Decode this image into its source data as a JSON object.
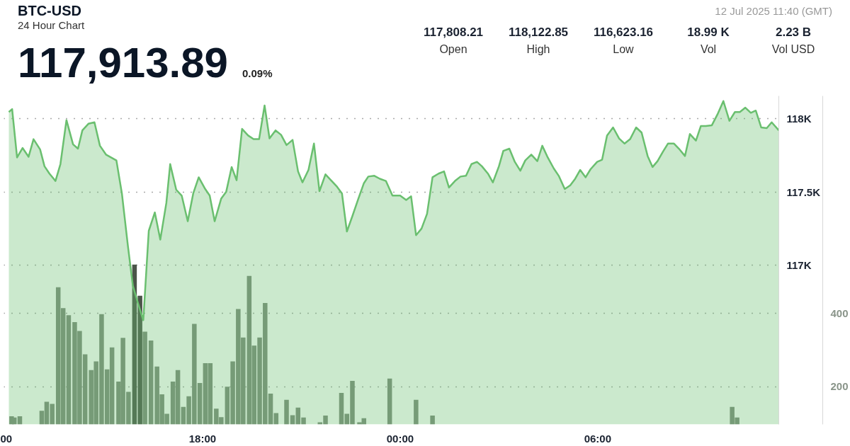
{
  "chart_data": {
    "type": "area",
    "title": "BTC-USD",
    "subtitle": "24 Hour Chart",
    "annotations": [
      "117,913.89",
      "0.09%",
      "117,808.21",
      "Open",
      "118,122.85",
      "High",
      "116,623.16",
      "Low",
      "18.99 K",
      "Vol",
      "2.23 B",
      "Vol USD",
      "12 Jul 2025 11:40 (GMT)"
    ],
    "xlim": [
      "2025-07-11T11:58",
      "2025-07-12T11:30"
    ],
    "xticks": [
      {
        "value": "2025-07-11T12:00",
        "label": "00"
      },
      {
        "value": "2025-07-11T18:00",
        "label": "18:00"
      },
      {
        "value": "2025-07-12T00:00",
        "label": "00:00"
      },
      {
        "value": "2025-07-12T06:00",
        "label": "06:00"
      }
    ],
    "ylim": [
      115914,
      118155
    ],
    "yticks": [
      {
        "value": 117000,
        "label": "117K"
      },
      {
        "value": 117500,
        "label": "117.5K"
      },
      {
        "value": 118000,
        "label": "118K"
      }
    ],
    "y2lim": [
      97,
      993
    ],
    "y2ticks": [
      200,
      400
    ],
    "grid": true,
    "series": [
      {
        "color": "#6abf6f",
        "x": [
          "2025-07-11T12:07",
          "2025-07-11T12:13",
          "2025-07-11T12:22",
          "2025-07-11T12:32",
          "2025-07-11T12:43",
          "2025-07-11T12:52",
          "2025-07-11T13:04",
          "2025-07-11T13:12",
          "2025-07-11T13:21",
          "2025-07-11T13:32",
          "2025-07-11T13:41",
          "2025-07-11T13:52",
          "2025-07-11T14:04",
          "2025-07-11T14:13",
          "2025-07-11T14:21",
          "2025-07-11T14:32",
          "2025-07-11T14:43",
          "2025-07-11T14:53",
          "2025-07-11T15:04",
          "2025-07-11T15:23",
          "2025-07-11T15:33",
          "2025-07-11T15:44",
          "2025-07-11T15:53",
          "2025-07-11T16:02",
          "2025-07-11T16:12",
          "2025-07-11T16:22",
          "2025-07-11T16:33",
          "2025-07-11T16:43",
          "2025-07-11T16:54",
          "2025-07-11T17:01",
          "2025-07-11T17:12",
          "2025-07-11T17:22",
          "2025-07-11T17:33",
          "2025-07-11T17:43",
          "2025-07-11T17:53",
          "2025-07-11T18:04",
          "2025-07-11T18:13",
          "2025-07-11T18:22",
          "2025-07-11T18:34",
          "2025-07-11T18:43",
          "2025-07-11T18:53",
          "2025-07-11T19:02",
          "2025-07-11T19:12",
          "2025-07-11T19:23",
          "2025-07-11T19:33",
          "2025-07-11T19:43",
          "2025-07-11T19:53",
          "2025-07-11T20:02",
          "2025-07-11T20:13",
          "2025-07-11T20:23",
          "2025-07-11T20:33",
          "2025-07-11T20:44",
          "2025-07-11T20:54",
          "2025-07-11T21:02",
          "2025-07-11T21:13",
          "2025-07-11T21:23",
          "2025-07-11T21:33",
          "2025-07-11T21:44",
          "2025-07-11T21:54",
          "2025-07-11T22:04",
          "2025-07-11T22:14",
          "2025-07-11T22:23",
          "2025-07-11T22:33",
          "2025-07-11T22:44",
          "2025-07-11T22:54",
          "2025-07-11T23:02",
          "2025-07-11T23:13",
          "2025-07-11T23:23",
          "2025-07-11T23:34",
          "2025-07-11T23:46",
          "2025-07-12T00:00",
          "2025-07-12T00:11",
          "2025-07-12T00:20",
          "2025-07-12T00:29",
          "2025-07-12T00:39",
          "2025-07-12T00:49",
          "2025-07-12T00:59",
          "2025-07-12T01:10",
          "2025-07-12T01:20",
          "2025-07-12T01:29",
          "2025-07-12T01:40",
          "2025-07-12T01:50",
          "2025-07-12T02:00",
          "2025-07-12T02:10",
          "2025-07-12T02:20",
          "2025-07-12T02:29",
          "2025-07-12T02:40",
          "2025-07-12T02:49",
          "2025-07-12T03:00",
          "2025-07-12T03:08",
          "2025-07-12T03:19",
          "2025-07-12T03:29",
          "2025-07-12T03:39",
          "2025-07-12T03:48",
          "2025-07-12T03:59",
          "2025-07-12T04:10",
          "2025-07-12T04:19",
          "2025-07-12T04:29",
          "2025-07-12T04:40",
          "2025-07-12T04:49",
          "2025-07-12T05:00",
          "2025-07-12T05:10",
          "2025-07-12T05:19",
          "2025-07-12T05:28",
          "2025-07-12T05:38",
          "2025-07-12T05:47",
          "2025-07-12T05:59",
          "2025-07-12T06:08",
          "2025-07-12T06:17",
          "2025-07-12T06:28",
          "2025-07-12T06:39",
          "2025-07-12T06:49",
          "2025-07-12T06:59",
          "2025-07-12T07:10",
          "2025-07-12T07:20",
          "2025-07-12T07:31",
          "2025-07-12T07:40",
          "2025-07-12T07:49",
          "2025-07-12T07:59",
          "2025-07-12T08:08",
          "2025-07-12T08:19",
          "2025-07-12T08:28",
          "2025-07-12T08:39",
          "2025-07-12T08:48",
          "2025-07-12T08:59",
          "2025-07-12T09:08",
          "2025-07-12T09:17",
          "2025-07-12T09:28",
          "2025-07-12T09:39",
          "2025-07-12T09:49",
          "2025-07-12T10:00",
          "2025-07-12T10:10",
          "2025-07-12T10:19",
          "2025-07-12T10:29",
          "2025-07-12T10:39",
          "2025-07-12T10:48",
          "2025-07-12T10:58",
          "2025-07-12T11:08",
          "2025-07-12T11:17",
          "2025-07-12T11:30"
        ],
        "values": [
          118045,
          118065,
          117735,
          117800,
          117740,
          117860,
          117790,
          117675,
          117625,
          117575,
          117690,
          117990,
          117825,
          117795,
          117920,
          117965,
          117975,
          117815,
          117755,
          117715,
          117490,
          117130,
          116860,
          116745,
          116625,
          117235,
          117360,
          117175,
          117425,
          117690,
          117515,
          117475,
          117300,
          117490,
          117600,
          117525,
          117475,
          117300,
          117455,
          117500,
          117670,
          117580,
          117930,
          117885,
          117860,
          117860,
          118090,
          117865,
          117920,
          117890,
          117820,
          117855,
          117640,
          117565,
          117650,
          117830,
          117505,
          117620,
          117580,
          117540,
          117490,
          117230,
          117335,
          117455,
          117560,
          117605,
          117610,
          117590,
          117575,
          117475,
          117475,
          117445,
          117470,
          117205,
          117250,
          117350,
          117600,
          117625,
          117640,
          117530,
          117575,
          117605,
          117610,
          117690,
          117705,
          117675,
          117625,
          117565,
          117675,
          117780,
          117795,
          117705,
          117645,
          117715,
          117755,
          117710,
          117815,
          117735,
          117660,
          117610,
          117520,
          117545,
          117590,
          117650,
          117600,
          117655,
          117705,
          117720,
          117885,
          117940,
          117865,
          117830,
          117860,
          117940,
          117905,
          117745,
          117670,
          117710,
          117775,
          117830,
          117830,
          117795,
          117745,
          117895,
          117850,
          117950,
          117950,
          117955,
          118035,
          118120,
          117985,
          118045,
          118045,
          118075,
          118040,
          118055,
          117940,
          117935,
          117975,
          117920
        ]
      },
      {
        "type": "bar",
        "axis": "y2",
        "color": "#7d877b",
        "x": [
          "2025-07-11T12:12",
          "2025-07-11T12:17",
          "2025-07-11T12:27",
          "2025-07-11T13:07",
          "2025-07-11T13:16",
          "2025-07-11T13:26",
          "2025-07-11T13:37",
          "2025-07-11T13:46",
          "2025-07-11T13:56",
          "2025-07-11T14:07",
          "2025-07-11T14:16",
          "2025-07-11T14:26",
          "2025-07-11T14:37",
          "2025-07-11T14:46",
          "2025-07-11T14:56",
          "2025-07-11T15:06",
          "2025-07-11T15:15",
          "2025-07-11T15:27",
          "2025-07-11T15:35",
          "2025-07-11T15:45",
          "2025-07-11T15:56",
          "2025-07-11T16:06",
          "2025-07-11T16:15",
          "2025-07-11T16:26",
          "2025-07-11T16:37",
          "2025-07-11T16:46",
          "2025-07-11T16:55",
          "2025-07-11T17:06",
          "2025-07-11T17:15",
          "2025-07-11T17:25",
          "2025-07-11T17:35",
          "2025-07-11T17:45",
          "2025-07-11T17:55",
          "2025-07-11T18:05",
          "2025-07-11T18:14",
          "2025-07-11T18:25",
          "2025-07-11T18:34",
          "2025-07-11T18:45",
          "2025-07-11T18:55",
          "2025-07-11T19:05",
          "2025-07-11T19:14",
          "2025-07-11T19:25",
          "2025-07-11T19:34",
          "2025-07-11T19:44",
          "2025-07-11T19:54",
          "2025-07-11T20:04",
          "2025-07-11T20:14",
          "2025-07-11T20:33",
          "2025-07-11T20:44",
          "2025-07-11T20:54",
          "2025-07-11T21:04",
          "2025-07-11T21:34",
          "2025-07-11T21:44",
          "2025-07-11T22:13",
          "2025-07-11T22:23",
          "2025-07-11T22:33",
          "2025-07-11T22:46",
          "2025-07-11T22:54",
          "2025-07-11T23:41",
          "2025-07-12T00:29",
          "2025-07-12T00:59",
          "2025-07-12T10:05",
          "2025-07-12T10:14"
        ],
        "values": [
          119,
          116,
          119,
          134,
          159,
          153,
          471,
          414,
          395,
          376,
          352,
          288,
          245,
          269,
          398,
          247,
          307,
          214,
          333,
          186,
          533,
          448,
          350,
          326,
          255,
          179,
          126,
          214,
          245,
          145,
          174,
          371,
          210,
          264,
          264,
          140,
          117,
          200,
          269,
          412,
          334,
          502,
          312,
          334,
          428,
          181,
          128,
          164,
          122,
          143,
          116,
          103,
          121,
          183,
          126,
          216,
          103,
          114,
          222,
          164,
          121,
          145,
          116
        ],
        "colors": [
          "#7d877b",
          "#7d877b",
          "#7d877b",
          "#7d877b",
          "#7d877b",
          "#7d877b",
          "#7d877b",
          "#7d877b",
          "#7d877b",
          "#7d877b",
          "#7d877b",
          "#7d877b",
          "#7d877b",
          "#7d877b",
          "#7d877b",
          "#7d877b",
          "#7d877b",
          "#7d877b",
          "#7d877b",
          "#7d877b",
          "#4b5449",
          "#4b5449",
          "#7d877b",
          "#7d877b",
          "#7d877b",
          "#7d877b",
          "#7d877b",
          "#7d877b",
          "#7d877b",
          "#7d877b",
          "#7d877b",
          "#7d877b",
          "#7d877b",
          "#7d877b",
          "#7d877b",
          "#7d877b",
          "#7d877b",
          "#7d877b",
          "#7d877b",
          "#7d877b",
          "#7d877b",
          "#7d877b",
          "#7d877b",
          "#7d877b",
          "#7d877b",
          "#7d877b",
          "#7d877b",
          "#7d877b",
          "#7d877b",
          "#7d877b",
          "#7d877b",
          "#7d877b",
          "#7d877b",
          "#7d877b",
          "#7d877b",
          "#7d877b",
          "#7d877b",
          "#7d877b",
          "#7d877b",
          "#7d877b",
          "#7d877b",
          "#7d877b",
          "#7d877b"
        ]
      }
    ]
  }
}
